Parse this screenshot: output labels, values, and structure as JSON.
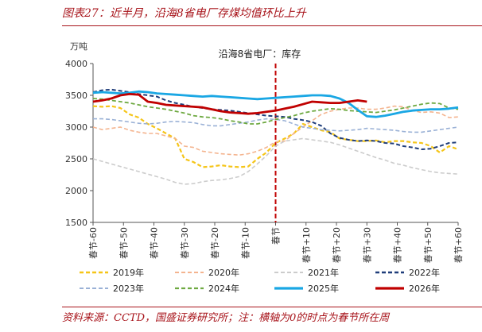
{
  "figure": {
    "title": "图表27：近半月，沿海8省电厂存煤均值环比上升",
    "source": "资料来源：CCTD，国盛证券研究所；注：横轴为0的时点为春节所在周"
  },
  "chart_data": {
    "type": "line",
    "ylabel": "万吨",
    "annotation": "沿海8省电厂：库存",
    "ylim": [
      1500,
      4000
    ],
    "yticks": [
      1500,
      2000,
      2500,
      3000,
      3500,
      4000
    ],
    "xlim": [
      -60,
      60
    ],
    "xticks": [
      -60,
      -50,
      -40,
      -30,
      -20,
      -10,
      0,
      10,
      20,
      30,
      40,
      50,
      60
    ],
    "xtick_labels": [
      "春节-60",
      "春节-50",
      "春节-40",
      "春节-30",
      "春节-20",
      "春节-10",
      "春节",
      "春节+10",
      "春节+20",
      "春节+30",
      "春节+40",
      "春节+50",
      "春节+60"
    ],
    "marker_line_x": 0,
    "grid": false,
    "legend_position": "bottom",
    "series": [
      {
        "name": "2019年",
        "color": "#f5c518",
        "dash": "dash",
        "width": 2.2,
        "x": [
          -60,
          -57,
          -54,
          -51,
          -48,
          -45,
          -42,
          -39,
          -36,
          -33,
          -30,
          -27,
          -24,
          -21,
          -18,
          -15,
          -12,
          -9,
          -6,
          -3,
          0,
          3,
          6,
          9,
          12,
          15,
          18,
          21,
          24,
          27,
          30,
          33,
          36,
          39,
          42,
          45,
          48,
          51,
          54,
          57,
          60
        ],
        "y": [
          3330,
          3320,
          3330,
          3300,
          3200,
          3150,
          3050,
          2980,
          2900,
          2820,
          2500,
          2450,
          2370,
          2380,
          2400,
          2380,
          2370,
          2380,
          2500,
          2600,
          2750,
          2820,
          2900,
          3050,
          3000,
          2950,
          2920,
          2820,
          2800,
          2780,
          2780,
          2790,
          2760,
          2780,
          2780,
          2760,
          2750,
          2700,
          2600,
          2700,
          2650
        ]
      },
      {
        "name": "2020年",
        "color": "#f4b48f",
        "dash": "dash",
        "width": 1.6,
        "x": [
          -60,
          -57,
          -54,
          -51,
          -48,
          -45,
          -42,
          -39,
          -36,
          -33,
          -30,
          -27,
          -24,
          -21,
          -18,
          -15,
          -12,
          -9,
          -6,
          -3,
          0,
          3,
          6,
          9,
          12,
          15,
          18,
          21,
          24,
          27,
          30,
          33,
          36,
          39,
          42,
          45,
          48,
          51,
          54,
          57,
          60
        ],
        "y": [
          3000,
          2960,
          2980,
          3000,
          2950,
          2920,
          2900,
          2900,
          2860,
          2820,
          2700,
          2680,
          2620,
          2600,
          2580,
          2570,
          2560,
          2580,
          2620,
          2680,
          2770,
          2780,
          2900,
          3000,
          3100,
          3200,
          3250,
          3280,
          3300,
          3300,
          3280,
          3280,
          3300,
          3330,
          3320,
          3260,
          3230,
          3240,
          3220,
          3150,
          3160
        ]
      },
      {
        "name": "2021年",
        "color": "#cccccc",
        "dash": "dash",
        "width": 1.6,
        "x": [
          -60,
          -57,
          -54,
          -51,
          -48,
          -45,
          -42,
          -39,
          -36,
          -33,
          -30,
          -27,
          -24,
          -21,
          -18,
          -15,
          -12,
          -9,
          -6,
          -3,
          0,
          3,
          6,
          9,
          12,
          15,
          18,
          21,
          24,
          27,
          30,
          33,
          36,
          39,
          42,
          45,
          48,
          51,
          54,
          57,
          60
        ],
        "y": [
          2500,
          2460,
          2420,
          2380,
          2340,
          2300,
          2260,
          2220,
          2180,
          2130,
          2100,
          2110,
          2140,
          2160,
          2170,
          2190,
          2220,
          2300,
          2420,
          2550,
          2700,
          2780,
          2800,
          2820,
          2800,
          2780,
          2760,
          2720,
          2670,
          2620,
          2570,
          2520,
          2480,
          2430,
          2400,
          2360,
          2330,
          2300,
          2280,
          2270,
          2260
        ]
      },
      {
        "name": "2022年",
        "color": "#1f3d7a",
        "dash": "dash",
        "width": 2.0,
        "x": [
          -60,
          -57,
          -54,
          -51,
          -48,
          -45,
          -42,
          -39,
          -36,
          -33,
          -30,
          -27,
          -24,
          -21,
          -18,
          -15,
          -12,
          -9,
          -6,
          -3,
          0,
          3,
          6,
          9,
          12,
          15,
          18,
          21,
          24,
          27,
          30,
          33,
          36,
          39,
          42,
          45,
          48,
          51,
          54,
          57,
          60
        ],
        "y": [
          3550,
          3580,
          3590,
          3570,
          3550,
          3520,
          3500,
          3480,
          3420,
          3380,
          3350,
          3320,
          3300,
          3280,
          3270,
          3260,
          3240,
          3220,
          3200,
          3180,
          3170,
          3160,
          3130,
          3110,
          3080,
          3020,
          2900,
          2830,
          2800,
          2780,
          2790,
          2780,
          2750,
          2740,
          2700,
          2680,
          2650,
          2660,
          2700,
          2750,
          2760
        ]
      },
      {
        "name": "2023年",
        "color": "#9ab1d6",
        "dash": "dash",
        "width": 1.6,
        "x": [
          -60,
          -57,
          -54,
          -51,
          -48,
          -45,
          -42,
          -39,
          -36,
          -33,
          -30,
          -27,
          -24,
          -21,
          -18,
          -15,
          -12,
          -9,
          -6,
          -3,
          0,
          3,
          6,
          9,
          12,
          15,
          18,
          21,
          24,
          27,
          30,
          33,
          36,
          39,
          42,
          45,
          48,
          51,
          54,
          57,
          60
        ],
        "y": [
          3130,
          3130,
          3120,
          3100,
          3080,
          3060,
          3050,
          3060,
          3080,
          3090,
          3080,
          3070,
          3040,
          3020,
          3020,
          3040,
          3060,
          3080,
          3110,
          3130,
          3120,
          3100,
          3050,
          3000,
          2980,
          2960,
          2950,
          2940,
          2950,
          2960,
          2980,
          2970,
          2960,
          2950,
          2930,
          2920,
          2920,
          2940,
          2960,
          2980,
          3000
        ]
      },
      {
        "name": "2024年",
        "color": "#6ea941",
        "dash": "dash",
        "width": 1.8,
        "x": [
          -60,
          -57,
          -54,
          -51,
          -48,
          -45,
          -42,
          -39,
          -36,
          -33,
          -30,
          -27,
          -24,
          -21,
          -18,
          -15,
          -12,
          -9,
          -6,
          -3,
          0,
          3,
          6,
          9,
          12,
          15,
          18,
          21,
          24,
          27,
          30,
          33,
          36,
          39,
          42,
          45,
          48,
          51,
          54,
          57,
          60
        ],
        "y": [
          3450,
          3440,
          3420,
          3400,
          3380,
          3350,
          3320,
          3300,
          3280,
          3250,
          3220,
          3180,
          3160,
          3150,
          3130,
          3100,
          3080,
          3050,
          3050,
          3080,
          3120,
          3150,
          3180,
          3220,
          3250,
          3270,
          3290,
          3280,
          3260,
          3250,
          3240,
          3230,
          3250,
          3270,
          3300,
          3330,
          3360,
          3380,
          3370,
          3300,
          3280
        ]
      },
      {
        "name": "2025年",
        "color": "#1aa7e4",
        "dash": "solid",
        "width": 2.8,
        "x": [
          -60,
          -57,
          -54,
          -51,
          -48,
          -45,
          -42,
          -39,
          -36,
          -33,
          -30,
          -27,
          -24,
          -21,
          -18,
          -15,
          -12,
          -9,
          -6,
          -3,
          0,
          3,
          6,
          9,
          12,
          15,
          18,
          21,
          24,
          27,
          30,
          33,
          36,
          39,
          42,
          45,
          48,
          51,
          54,
          57,
          60
        ],
        "y": [
          3540,
          3550,
          3540,
          3530,
          3540,
          3560,
          3550,
          3530,
          3520,
          3510,
          3500,
          3490,
          3480,
          3490,
          3480,
          3470,
          3460,
          3450,
          3440,
          3450,
          3460,
          3470,
          3480,
          3490,
          3500,
          3500,
          3490,
          3450,
          3380,
          3270,
          3170,
          3160,
          3180,
          3210,
          3240,
          3260,
          3270,
          3280,
          3280,
          3290,
          3310
        ]
      },
      {
        "name": "2026年",
        "color": "#c00000",
        "dash": "solid",
        "width": 2.8,
        "x": [
          -60,
          -57,
          -54,
          -51,
          -48,
          -45,
          -42,
          -39,
          -36,
          -33,
          -30,
          -27,
          -24,
          -21,
          -18,
          -15,
          -12,
          -9,
          -6,
          -3,
          0,
          3,
          6,
          9,
          12,
          15,
          18,
          21,
          24,
          27,
          30
        ],
        "y": [
          3400,
          3420,
          3450,
          3500,
          3520,
          3510,
          3400,
          3380,
          3350,
          3340,
          3330,
          3320,
          3310,
          3280,
          3250,
          3230,
          3220,
          3210,
          3220,
          3240,
          3260,
          3290,
          3320,
          3360,
          3400,
          3390,
          3380,
          3380,
          3400,
          3420,
          3400
        ]
      }
    ]
  }
}
